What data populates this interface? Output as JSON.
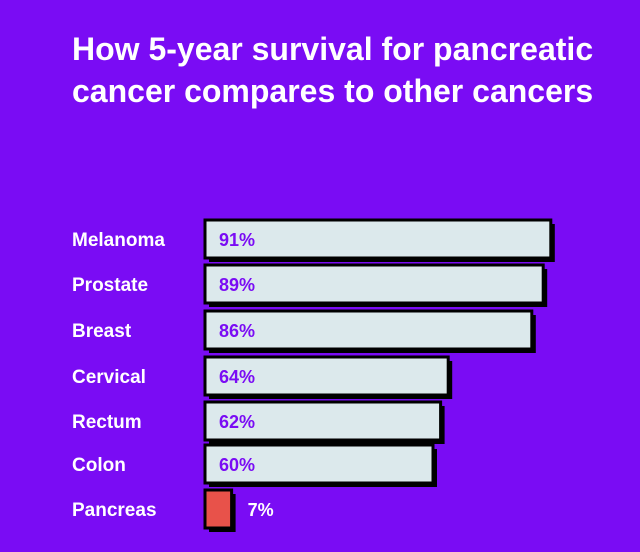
{
  "chart_data": {
    "type": "bar",
    "orientation": "horizontal",
    "title": "How 5-year survival for pancreatic cancer compares to other cancers",
    "categories": [
      "Melanoma",
      "Prostate",
      "Breast",
      "Cervical",
      "Rectum",
      "Colon",
      "Pancreas"
    ],
    "values": [
      91,
      89,
      86,
      64,
      62,
      60,
      7
    ],
    "value_labels": [
      "91%",
      "89%",
      "86%",
      "64%",
      "62%",
      "60%",
      "7%"
    ],
    "xlim": [
      0,
      100
    ],
    "grid": false,
    "legend": "none"
  },
  "colors": {
    "background": "#7a0cf4",
    "bar_fill": "#dce9ec",
    "highlight_bar_fill": "#e8524a",
    "bar_stroke": "#000000",
    "shadow": "#000000",
    "value_text": "#7a0cf4",
    "highlight_value_text": "#ffffff",
    "label_text": "#ffffff"
  },
  "highlight_category": "Pancreas"
}
